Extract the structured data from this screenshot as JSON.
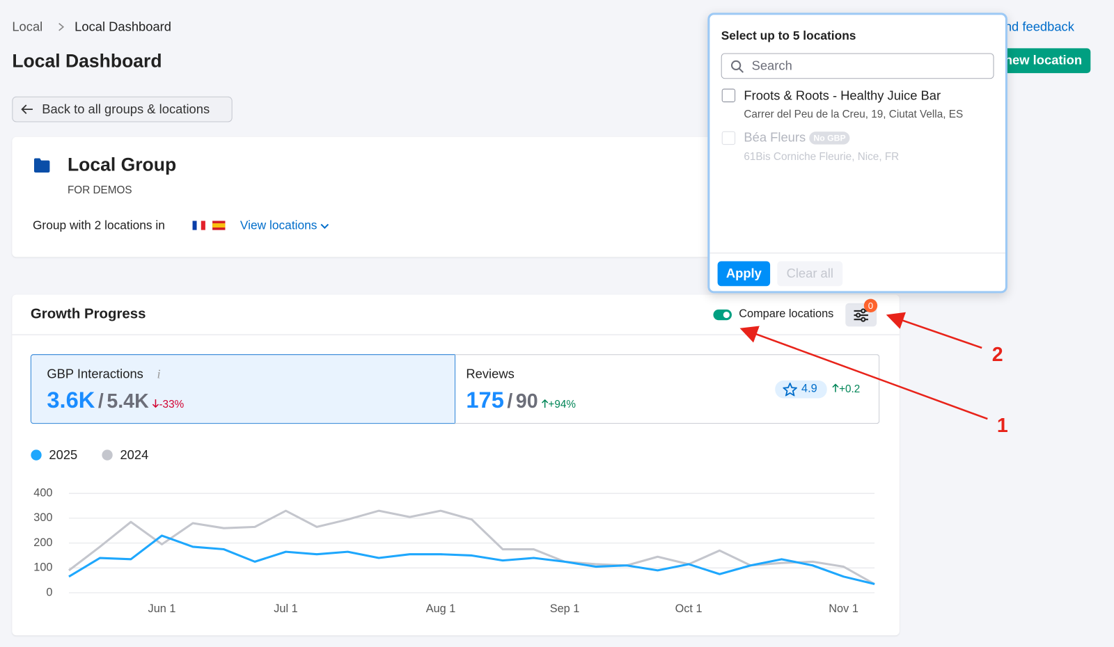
{
  "breadcrumb": [
    "Local",
    "Local Dashboard"
  ],
  "title": "Local Dashboard",
  "header_actions": {
    "feedback": "nd feedback",
    "add_location": "new location"
  },
  "back_button": "Back to all groups & locations",
  "group": {
    "name": "Local Group",
    "subtitle": "FOR DEMOS",
    "description": "Group with 2 locations in",
    "view_link": "View locations"
  },
  "growth": {
    "title": "Growth Progress",
    "compare": "Compare locations",
    "filter_badge": "0"
  },
  "metrics": [
    {
      "label": "GBP Interactions",
      "value": "3.6K",
      "separator": "/",
      "previous": "5.4K",
      "change": "-33%"
    },
    {
      "label": "Reviews",
      "value": "175",
      "separator": "/",
      "previous": "90",
      "change": "+94%",
      "rating": "4.9",
      "rating_change": "+0.2"
    }
  ],
  "chart_data": {
    "type": "line",
    "categories": [
      null,
      null,
      null,
      "Jun 1",
      null,
      null,
      null,
      "Jul 1",
      null,
      null,
      null,
      null,
      "Aug 1",
      null,
      null,
      null,
      "Sep 1",
      null,
      null,
      null,
      "Oct 1",
      null,
      null,
      null,
      null,
      "Nov 1",
      null
    ],
    "series": [
      {
        "name": "2025",
        "color": "#1ea7fd",
        "values": [
          65,
          140,
          135,
          230,
          185,
          175,
          125,
          165,
          155,
          165,
          140,
          155,
          155,
          150,
          130,
          140,
          125,
          105,
          110,
          90,
          115,
          75,
          110,
          135,
          110,
          65,
          35
        ]
      },
      {
        "name": "2024",
        "color": "#c4c6cd",
        "values": [
          90,
          185,
          285,
          195,
          280,
          260,
          265,
          330,
          265,
          295,
          330,
          305,
          330,
          295,
          175,
          175,
          125,
          115,
          110,
          145,
          115,
          170,
          110,
          120,
          125,
          105,
          35
        ]
      }
    ],
    "ylim": [
      0,
      400
    ],
    "yticks": [
      0,
      100,
      200,
      300,
      400
    ],
    "grid": true
  },
  "popup": {
    "title": "Select up to 5 locations",
    "search_placeholder": "Search",
    "locations": [
      {
        "name": "Froots & Roots - Healthy Juice Bar",
        "address": "Carrer del Peu de la Creu, 19, Ciutat Vella, ES"
      },
      {
        "name": "Béa Fleurs",
        "badge": "No GBP",
        "address": "61Bis Corniche Fleurie, Nice, FR"
      }
    ],
    "apply": "Apply",
    "clear": "Clear all"
  },
  "annotations": [
    "1",
    "2"
  ]
}
